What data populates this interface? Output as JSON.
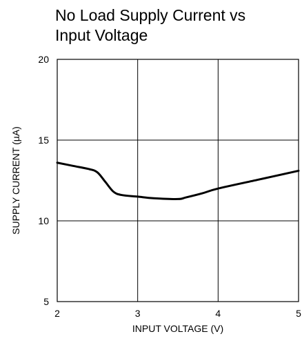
{
  "chart_data": {
    "type": "line",
    "title_lines": [
      "No Load Supply Current vs",
      "Input Voltage"
    ],
    "xlabel": "INPUT VOLTAGE (V)",
    "ylabel": "SUPPLY CURRENT (µA)",
    "xlim": [
      2,
      5
    ],
    "ylim": [
      5,
      20
    ],
    "xticks": [
      "2",
      "3",
      "4",
      "5"
    ],
    "yticks": [
      "5",
      "10",
      "15",
      "20"
    ],
    "grid": true,
    "line_color": "#000000",
    "series": [
      {
        "x": [
          2.0,
          2.2,
          2.4,
          2.5,
          2.6,
          2.7,
          2.8,
          3.0,
          3.2,
          3.5,
          3.6,
          3.8,
          4.0,
          4.5,
          5.0
        ],
        "y": [
          13.6,
          13.4,
          13.2,
          13.0,
          12.4,
          11.8,
          11.6,
          11.5,
          11.4,
          11.35,
          11.45,
          11.7,
          12.0,
          12.55,
          13.1
        ]
      }
    ]
  }
}
